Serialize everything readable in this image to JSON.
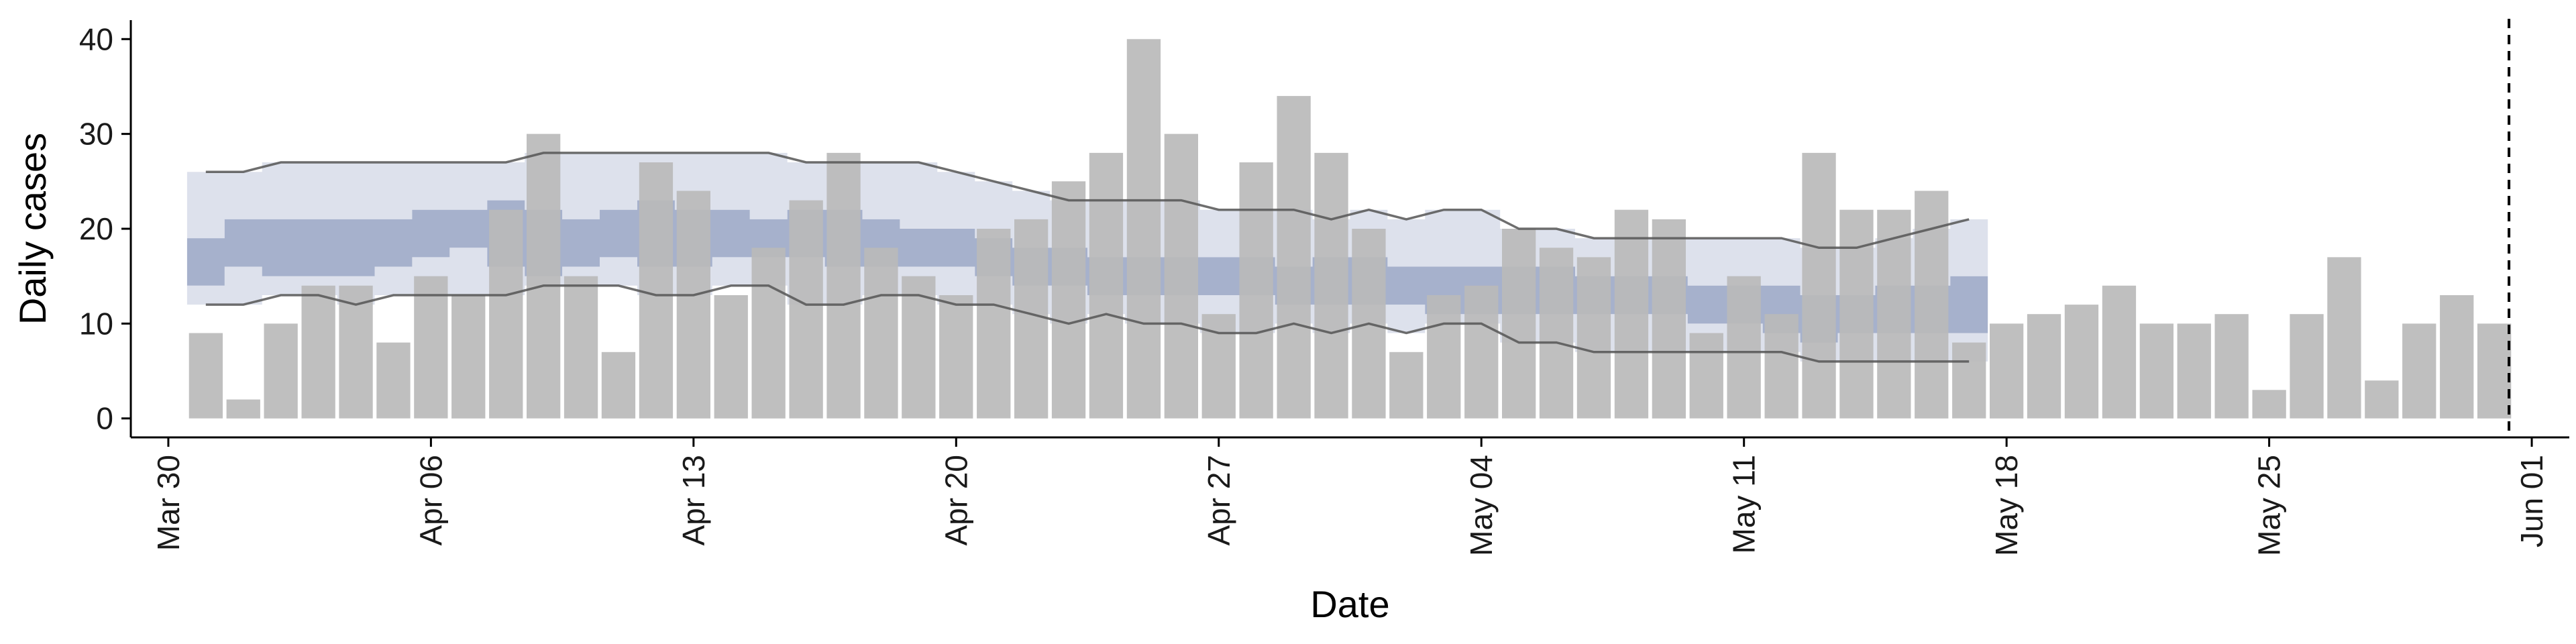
{
  "chart_data": {
    "type": "bar",
    "title": "",
    "xlabel": "Date",
    "ylabel": "Daily cases",
    "ylim": [
      -2,
      42
    ],
    "yticks": [
      0,
      10,
      20,
      30,
      40
    ],
    "xlim": [
      "2020-03-29",
      "2020-06-02"
    ],
    "xticks": [
      {
        "date": "2020-03-30",
        "label": "Mar 30"
      },
      {
        "date": "2020-04-06",
        "label": "Apr 06"
      },
      {
        "date": "2020-04-13",
        "label": "Apr 13"
      },
      {
        "date": "2020-04-20",
        "label": "Apr 20"
      },
      {
        "date": "2020-04-27",
        "label": "Apr 27"
      },
      {
        "date": "2020-05-04",
        "label": "May 04"
      },
      {
        "date": "2020-05-11",
        "label": "May 11"
      },
      {
        "date": "2020-05-18",
        "label": "May 18"
      },
      {
        "date": "2020-05-25",
        "label": "May 25"
      },
      {
        "date": "2020-06-01",
        "label": "Jun 01"
      }
    ],
    "grid": false,
    "vline_date": "2020-05-31",
    "bars": {
      "dates": [
        "2020-03-31",
        "2020-04-01",
        "2020-04-02",
        "2020-04-03",
        "2020-04-04",
        "2020-04-05",
        "2020-04-06",
        "2020-04-07",
        "2020-04-08",
        "2020-04-09",
        "2020-04-10",
        "2020-04-11",
        "2020-04-12",
        "2020-04-13",
        "2020-04-14",
        "2020-04-15",
        "2020-04-16",
        "2020-04-17",
        "2020-04-18",
        "2020-04-19",
        "2020-04-20",
        "2020-04-21",
        "2020-04-22",
        "2020-04-23",
        "2020-04-24",
        "2020-04-25",
        "2020-04-26",
        "2020-04-27",
        "2020-04-28",
        "2020-04-29",
        "2020-04-30",
        "2020-05-01",
        "2020-05-02",
        "2020-05-03",
        "2020-05-04",
        "2020-05-05",
        "2020-05-06",
        "2020-05-07",
        "2020-05-08",
        "2020-05-09",
        "2020-05-10",
        "2020-05-11",
        "2020-05-12",
        "2020-05-13",
        "2020-05-14",
        "2020-05-15",
        "2020-05-16",
        "2020-05-17",
        "2020-05-18",
        "2020-05-19",
        "2020-05-20",
        "2020-05-21",
        "2020-05-22",
        "2020-05-23",
        "2020-05-24",
        "2020-05-25",
        "2020-05-26",
        "2020-05-27",
        "2020-05-28",
        "2020-05-29",
        "2020-05-30",
        "2020-05-31"
      ],
      "values": [
        9,
        2,
        10,
        14,
        14,
        8,
        15,
        13,
        22,
        30,
        15,
        7,
        27,
        24,
        13,
        18,
        23,
        28,
        18,
        15,
        13,
        20,
        21,
        25,
        28,
        40,
        30,
        11,
        27,
        34,
        28,
        20,
        7,
        13,
        14,
        20,
        18,
        17,
        22,
        21,
        9,
        15,
        11,
        28,
        22,
        22,
        24,
        8,
        10,
        11,
        12,
        14,
        10,
        10,
        11,
        3,
        11,
        17,
        4,
        10,
        13,
        10
      ],
      "color": "#bababa"
    },
    "bands": {
      "dates": [
        "2020-03-31",
        "2020-04-01",
        "2020-04-02",
        "2020-04-03",
        "2020-04-04",
        "2020-04-05",
        "2020-04-06",
        "2020-04-07",
        "2020-04-08",
        "2020-04-09",
        "2020-04-10",
        "2020-04-11",
        "2020-04-12",
        "2020-04-13",
        "2020-04-14",
        "2020-04-15",
        "2020-04-16",
        "2020-04-17",
        "2020-04-18",
        "2020-04-19",
        "2020-04-20",
        "2020-04-21",
        "2020-04-22",
        "2020-04-23",
        "2020-04-24",
        "2020-04-25",
        "2020-04-26",
        "2020-04-27",
        "2020-04-28",
        "2020-04-29",
        "2020-04-30",
        "2020-05-01",
        "2020-05-02",
        "2020-05-03",
        "2020-05-04",
        "2020-05-05",
        "2020-05-06",
        "2020-05-07",
        "2020-05-08",
        "2020-05-09",
        "2020-05-10",
        "2020-05-11",
        "2020-05-12",
        "2020-05-13",
        "2020-05-14",
        "2020-05-15",
        "2020-05-16",
        "2020-05-17"
      ],
      "outer_low": [
        12,
        12,
        13,
        13,
        12,
        13,
        13,
        13,
        13,
        14,
        14,
        14,
        13,
        13,
        14,
        14,
        12,
        12,
        13,
        13,
        12,
        12,
        11,
        10,
        11,
        10,
        10,
        9,
        9,
        10,
        9,
        10,
        9,
        10,
        10,
        8,
        8,
        7,
        7,
        7,
        7,
        7,
        7,
        6,
        6,
        6,
        6,
        6
      ],
      "outer_high": [
        26,
        26,
        27,
        27,
        27,
        27,
        27,
        27,
        27,
        28,
        28,
        28,
        28,
        28,
        28,
        28,
        27,
        27,
        27,
        27,
        26,
        25,
        24,
        23,
        23,
        23,
        23,
        22,
        22,
        22,
        21,
        22,
        21,
        22,
        22,
        20,
        20,
        19,
        19,
        19,
        19,
        19,
        19,
        18,
        18,
        19,
        20,
        21
      ],
      "inner_low": [
        14,
        16,
        15,
        15,
        15,
        16,
        17,
        18,
        16,
        15,
        16,
        17,
        16,
        16,
        17,
        17,
        17,
        16,
        16,
        16,
        16,
        15,
        14,
        14,
        13,
        13,
        13,
        13,
        13,
        12,
        12,
        12,
        12,
        11,
        11,
        11,
        11,
        11,
        11,
        11,
        10,
        10,
        9,
        8,
        9,
        9,
        9,
        9
      ],
      "inner_high": [
        19,
        21,
        21,
        21,
        21,
        21,
        22,
        22,
        23,
        22,
        21,
        22,
        23,
        22,
        22,
        21,
        22,
        22,
        21,
        20,
        20,
        19,
        18,
        18,
        17,
        17,
        17,
        17,
        17,
        16,
        17,
        17,
        16,
        16,
        16,
        16,
        16,
        15,
        15,
        15,
        14,
        14,
        14,
        13,
        13,
        14,
        14,
        15
      ],
      "outer_color": "#dde1ec",
      "inner_color": "#a6b1cc",
      "line_color": "#555555"
    }
  }
}
